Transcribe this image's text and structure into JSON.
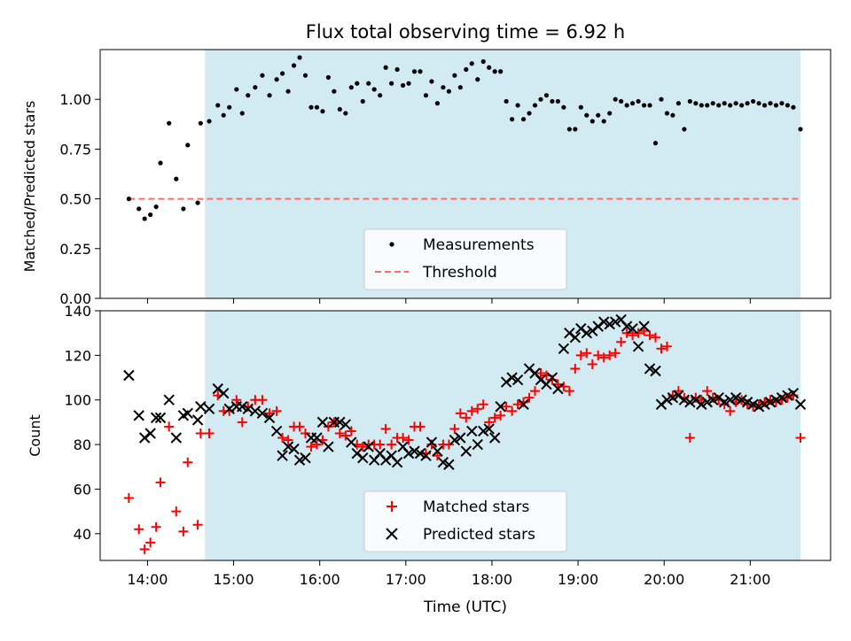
{
  "chart_data": [
    {
      "type": "scatter",
      "title": "Flux total observing time = 6.92 h",
      "xlabel": "",
      "ylabel": "Matched/Predicted stars",
      "xlim": [
        "13:27",
        "21:56"
      ],
      "ylim": [
        0,
        1.25
      ],
      "yticks": [
        "0.00",
        "0.25",
        "0.50",
        "0.75",
        "1.00"
      ],
      "shaded_span": [
        "14:40",
        "21:35"
      ],
      "shade_color": "#add8e6",
      "threshold": {
        "value": 0.5,
        "from": "13:47",
        "to": "21:35",
        "color": "#ff6b6b",
        "name": "Threshold"
      },
      "legend": {
        "placement": "lower-center",
        "entries": [
          "Measurements",
          "Threshold"
        ]
      },
      "series": [
        {
          "name": "Measurements",
          "color": "#000000",
          "marker": "dot",
          "x": [
            "13:47",
            "13:54",
            "13:58",
            "14:02",
            "14:06",
            "14:09",
            "14:15",
            "14:20",
            "14:25",
            "14:28",
            "14:35",
            "14:37",
            "14:43",
            "14:49",
            "14:53",
            "14:57",
            "15:02",
            "15:06",
            "15:10",
            "15:15",
            "15:20",
            "15:25",
            "15:30",
            "15:34",
            "15:38",
            "15:42",
            "15:46",
            "15:50",
            "15:54",
            "15:58",
            "16:02",
            "16:06",
            "16:10",
            "16:14",
            "16:18",
            "16:22",
            "16:26",
            "16:30",
            "16:34",
            "16:38",
            "16:42",
            "16:46",
            "16:50",
            "16:54",
            "16:58",
            "17:02",
            "17:06",
            "17:10",
            "17:14",
            "17:18",
            "17:22",
            "17:26",
            "17:30",
            "17:34",
            "17:38",
            "17:42",
            "17:46",
            "17:50",
            "17:54",
            "17:58",
            "18:02",
            "18:06",
            "18:10",
            "18:14",
            "18:18",
            "18:22",
            "18:26",
            "18:30",
            "18:34",
            "18:38",
            "18:42",
            "18:46",
            "18:50",
            "18:54",
            "18:58",
            "19:02",
            "19:06",
            "19:10",
            "19:14",
            "19:18",
            "19:22",
            "19:26",
            "19:30",
            "19:34",
            "19:38",
            "19:42",
            "19:46",
            "19:50",
            "19:54",
            "19:58",
            "20:02",
            "20:06",
            "20:10",
            "20:14",
            "20:18",
            "20:22",
            "20:26",
            "20:30",
            "20:34",
            "20:38",
            "20:42",
            "20:46",
            "20:50",
            "20:54",
            "20:58",
            "21:02",
            "21:06",
            "21:10",
            "21:14",
            "21:18",
            "21:22",
            "21:26",
            "21:30",
            "21:35"
          ],
          "y": [
            0.5,
            0.45,
            0.4,
            0.42,
            0.46,
            0.68,
            0.88,
            0.6,
            0.45,
            0.77,
            0.48,
            0.88,
            0.89,
            0.97,
            0.92,
            0.96,
            1.05,
            0.93,
            1.02,
            1.06,
            1.12,
            1.02,
            1.1,
            1.13,
            1.04,
            1.17,
            1.21,
            1.12,
            0.96,
            0.96,
            0.94,
            1.11,
            1.04,
            0.95,
            0.93,
            1.06,
            1.08,
            0.99,
            1.08,
            1.05,
            1.02,
            1.16,
            1.08,
            1.15,
            1.07,
            1.08,
            1.14,
            1.14,
            1.02,
            1.09,
            0.98,
            1.06,
            1.04,
            1.12,
            1.06,
            1.15,
            1.18,
            1.1,
            1.19,
            1.16,
            1.14,
            1.14,
            0.99,
            0.9,
            0.97,
            0.9,
            0.93,
            0.97,
            1.0,
            1.02,
            0.99,
            0.99,
            0.96,
            0.85,
            0.85,
            0.96,
            0.92,
            0.89,
            0.92,
            0.89,
            0.93,
            1.0,
            0.99,
            0.97,
            0.98,
            0.99,
            0.97,
            0.97,
            0.78,
            1.0,
            0.93,
            0.92,
            0.98,
            0.85,
            0.99,
            0.98,
            0.97,
            0.97,
            0.98,
            0.97,
            0.98,
            0.97,
            0.98,
            0.97,
            0.98,
            0.99,
            0.98,
            0.97,
            0.98,
            0.97,
            0.98,
            0.97,
            0.96,
            0.85
          ]
        }
      ]
    },
    {
      "type": "scatter",
      "title": "",
      "xlabel": "Time (UTC)",
      "ylabel": "Count",
      "xlim": [
        "13:27",
        "21:56"
      ],
      "ylim": [
        28,
        140
      ],
      "yticks": [
        "40",
        "60",
        "80",
        "100",
        "120",
        "140"
      ],
      "xticks": [
        "14:00",
        "15:00",
        "16:00",
        "17:00",
        "18:00",
        "19:00",
        "20:00",
        "21:00"
      ],
      "shaded_span": [
        "14:40",
        "21:35"
      ],
      "shade_color": "#add8e6",
      "legend": {
        "placement": "lower-center",
        "entries": [
          "Matched stars",
          "Predicted stars"
        ]
      },
      "series": [
        {
          "name": "Matched stars",
          "color": "#ff0000",
          "marker": "plus",
          "x": [
            "13:47",
            "13:54",
            "13:58",
            "14:02",
            "14:06",
            "14:09",
            "14:15",
            "14:20",
            "14:25",
            "14:28",
            "14:35",
            "14:37",
            "14:43",
            "14:49",
            "14:53",
            "14:57",
            "15:02",
            "15:06",
            "15:10",
            "15:15",
            "15:20",
            "15:25",
            "15:30",
            "15:34",
            "15:38",
            "15:42",
            "15:46",
            "15:50",
            "15:54",
            "15:58",
            "16:02",
            "16:06",
            "16:10",
            "16:14",
            "16:18",
            "16:22",
            "16:26",
            "16:30",
            "16:34",
            "16:38",
            "16:42",
            "16:46",
            "16:50",
            "16:54",
            "16:58",
            "17:02",
            "17:06",
            "17:10",
            "17:14",
            "17:18",
            "17:22",
            "17:26",
            "17:30",
            "17:34",
            "17:38",
            "17:42",
            "17:46",
            "17:50",
            "17:54",
            "17:58",
            "18:02",
            "18:06",
            "18:10",
            "18:14",
            "18:18",
            "18:22",
            "18:26",
            "18:30",
            "18:34",
            "18:38",
            "18:42",
            "18:46",
            "18:50",
            "18:54",
            "18:58",
            "19:02",
            "19:06",
            "19:10",
            "19:14",
            "19:18",
            "19:22",
            "19:26",
            "19:30",
            "19:34",
            "19:38",
            "19:42",
            "19:46",
            "19:50",
            "19:54",
            "19:58",
            "20:02",
            "20:06",
            "20:10",
            "20:14",
            "20:18",
            "20:22",
            "20:26",
            "20:30",
            "20:34",
            "20:38",
            "20:42",
            "20:46",
            "20:50",
            "20:54",
            "20:58",
            "21:02",
            "21:06",
            "21:10",
            "21:14",
            "21:18",
            "21:22",
            "21:26",
            "21:30",
            "21:35"
          ],
          "y": [
            56,
            42,
            33,
            36,
            43,
            63,
            88,
            50,
            41,
            72,
            44,
            85,
            85,
            102,
            95,
            95,
            100,
            90,
            97,
            100,
            100,
            94,
            95,
            83,
            82,
            88,
            88,
            85,
            79,
            80,
            82,
            88,
            90,
            85,
            84,
            86,
            80,
            79,
            80,
            80,
            80,
            87,
            80,
            83,
            83,
            82,
            88,
            88,
            76,
            80,
            75,
            80,
            80,
            87,
            94,
            92,
            95,
            96,
            98,
            90,
            92,
            93,
            97,
            95,
            98,
            99,
            101,
            104,
            112,
            111,
            109,
            107,
            106,
            104,
            114,
            120,
            121,
            116,
            120,
            119,
            120,
            121,
            126,
            130,
            129,
            130,
            131,
            129,
            128,
            123,
            124,
            102,
            104,
            101,
            83,
            101,
            100,
            104,
            101,
            100,
            98,
            95,
            99,
            100,
            98,
            97,
            98,
            99,
            100,
            99,
            100,
            101,
            102,
            83
          ]
        },
        {
          "name": "Predicted stars",
          "color": "#000000",
          "marker": "x",
          "x": [
            "13:47",
            "13:54",
            "13:58",
            "14:02",
            "14:06",
            "14:09",
            "14:15",
            "14:20",
            "14:25",
            "14:28",
            "14:35",
            "14:37",
            "14:43",
            "14:49",
            "14:53",
            "14:57",
            "15:02",
            "15:06",
            "15:10",
            "15:15",
            "15:20",
            "15:25",
            "15:30",
            "15:34",
            "15:38",
            "15:42",
            "15:46",
            "15:50",
            "15:54",
            "15:58",
            "16:02",
            "16:06",
            "16:10",
            "16:14",
            "16:18",
            "16:22",
            "16:26",
            "16:30",
            "16:34",
            "16:38",
            "16:42",
            "16:46",
            "16:50",
            "16:54",
            "16:58",
            "17:02",
            "17:06",
            "17:10",
            "17:14",
            "17:18",
            "17:22",
            "17:26",
            "17:30",
            "17:34",
            "17:38",
            "17:42",
            "17:46",
            "17:50",
            "17:54",
            "17:58",
            "18:02",
            "18:06",
            "18:10",
            "18:14",
            "18:18",
            "18:22",
            "18:26",
            "18:30",
            "18:34",
            "18:38",
            "18:42",
            "18:46",
            "18:50",
            "18:54",
            "18:58",
            "19:02",
            "19:06",
            "19:10",
            "19:14",
            "19:18",
            "19:22",
            "19:26",
            "19:30",
            "19:34",
            "19:38",
            "19:42",
            "19:46",
            "19:50",
            "19:54",
            "19:58",
            "20:02",
            "20:06",
            "20:10",
            "20:14",
            "20:18",
            "20:22",
            "20:26",
            "20:30",
            "20:34",
            "20:38",
            "20:42",
            "20:46",
            "20:50",
            "20:54",
            "20:58",
            "21:02",
            "21:06",
            "21:10",
            "21:14",
            "21:18",
            "21:22",
            "21:26",
            "21:30",
            "21:35"
          ],
          "y": [
            111,
            93,
            83,
            85,
            92,
            92,
            100,
            83,
            93,
            94,
            91,
            97,
            96,
            105,
            103,
            96,
            97,
            97,
            96,
            95,
            94,
            92,
            86,
            75,
            79,
            78,
            73,
            74,
            83,
            83,
            90,
            79,
            90,
            90,
            89,
            81,
            76,
            74,
            79,
            73,
            76,
            73,
            75,
            72,
            79,
            76,
            77,
            76,
            75,
            81,
            77,
            72,
            71,
            82,
            83,
            77,
            86,
            80,
            86,
            87,
            83,
            97,
            108,
            110,
            109,
            98,
            114,
            112,
            109,
            107,
            110,
            105,
            123,
            130,
            128,
            132,
            130,
            131,
            133,
            135,
            134,
            135,
            136,
            133,
            132,
            124,
            133,
            114,
            113,
            98,
            100,
            101,
            102,
            100,
            99,
            100,
            98,
            99,
            100,
            101,
            99,
            100,
            101,
            100,
            99,
            98,
            97,
            98,
            99,
            100,
            101,
            102,
            103,
            98
          ]
        }
      ]
    }
  ]
}
